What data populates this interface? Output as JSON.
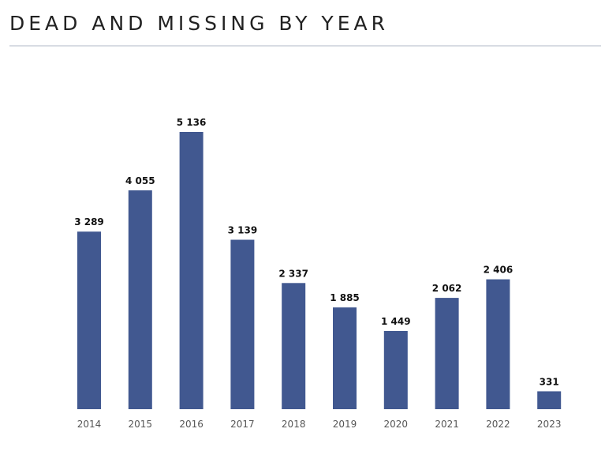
{
  "title": "DEAD AND MISSING BY YEAR",
  "colors": {
    "bar": "#415890",
    "rule": "#d8dce3"
  },
  "chart_data": {
    "type": "bar",
    "title": "DEAD AND MISSING BY YEAR",
    "categories": [
      "2014",
      "2015",
      "2016",
      "2017",
      "2018",
      "2019",
      "2020",
      "2021",
      "2022",
      "2023"
    ],
    "values": [
      3289,
      4055,
      5136,
      3139,
      2337,
      1885,
      1449,
      2062,
      2406,
      331
    ],
    "value_labels": [
      "3 289",
      "4 055",
      "5 136",
      "3 139",
      "2 337",
      "1 885",
      "1 449",
      "2 062",
      "2 406",
      "331"
    ],
    "xlabel": "",
    "ylabel": "",
    "ylim": [
      0,
      5136
    ],
    "grid": false,
    "legend": "none"
  }
}
